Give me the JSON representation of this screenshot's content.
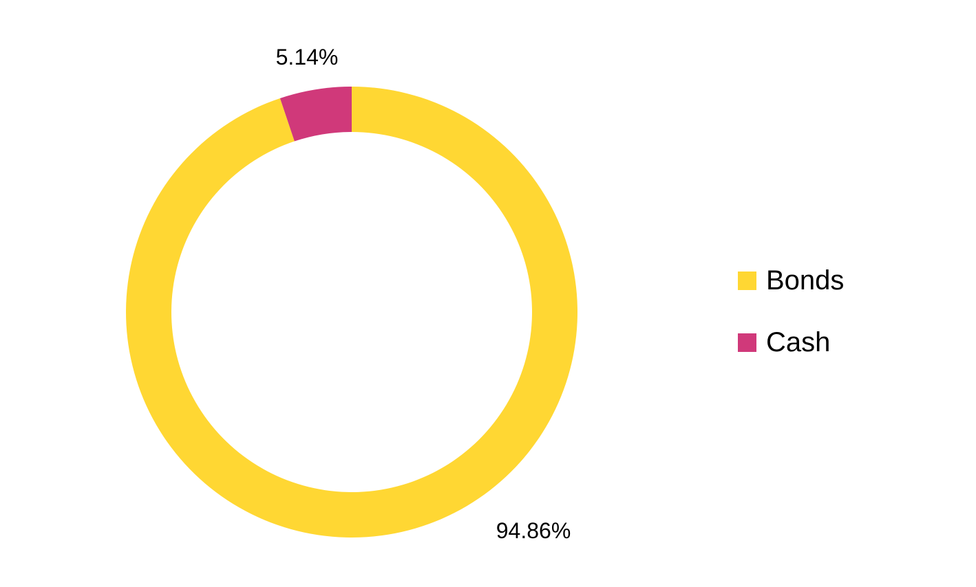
{
  "chart_data": {
    "type": "pie",
    "variant": "donut",
    "title": "",
    "series": [
      {
        "name": "Bonds",
        "value": 94.86,
        "label": "94.86%",
        "color": "#FFD733"
      },
      {
        "name": "Cash",
        "value": 5.14,
        "label": "5.14%",
        "color": "#D0397A"
      }
    ],
    "legend": {
      "position": "right",
      "items": [
        {
          "name": "Bonds",
          "color": "#FFD733"
        },
        {
          "name": "Cash",
          "color": "#D0397A"
        }
      ]
    }
  }
}
